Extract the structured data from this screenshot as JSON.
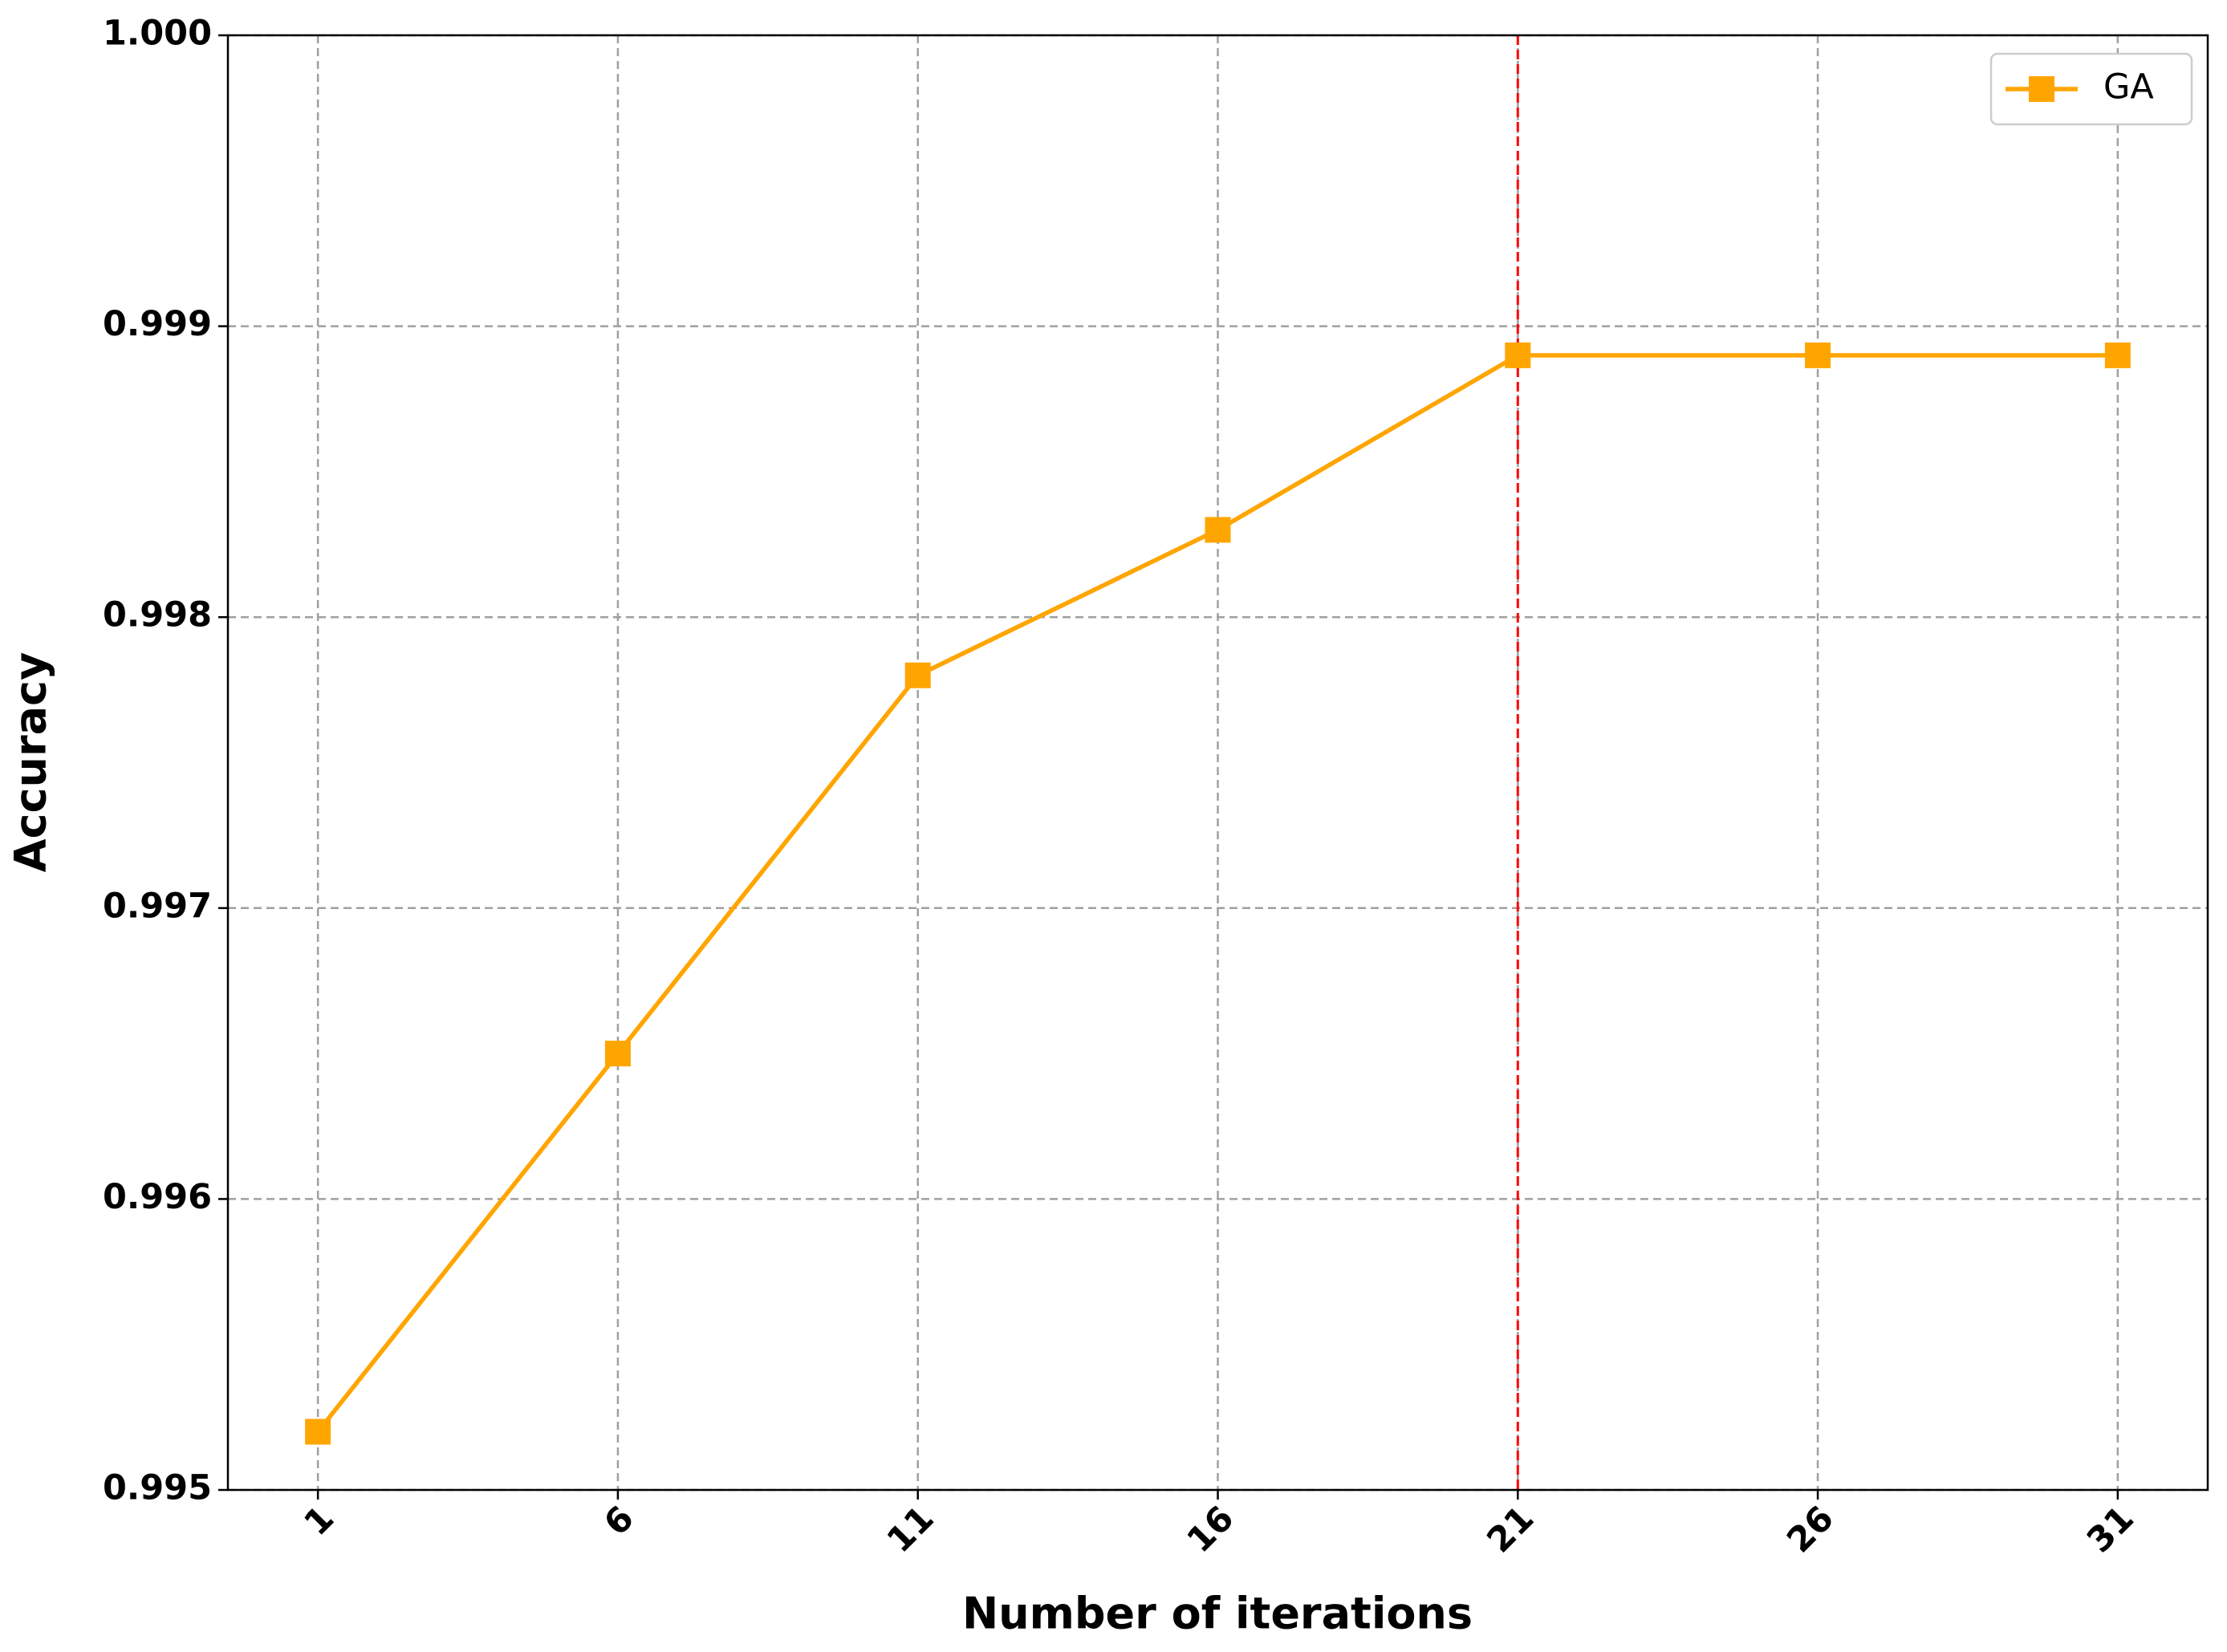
{
  "chart_data": {
    "type": "line",
    "xlabel": "Number of iterations",
    "ylabel": "Accuracy",
    "x": [
      1,
      6,
      11,
      16,
      21,
      26,
      31
    ],
    "series": [
      {
        "name": "GA",
        "color": "#ffa500",
        "values": [
          0.9952,
          0.9965,
          0.9978,
          0.9983,
          0.9989,
          0.9989,
          0.9989
        ]
      }
    ],
    "xlim": [
      -0.5,
      32.5
    ],
    "xticks": [
      1,
      6,
      11,
      16,
      21,
      26,
      31
    ],
    "ylim": [
      0.995,
      1.0
    ],
    "yticks": [
      0.995,
      0.996,
      0.997,
      0.998,
      0.999,
      {
        "value": 1.0,
        "label": "1.000"
      }
    ],
    "grid": true,
    "legend": "upper right",
    "vline": 21,
    "vline_color": "#ff0000"
  }
}
